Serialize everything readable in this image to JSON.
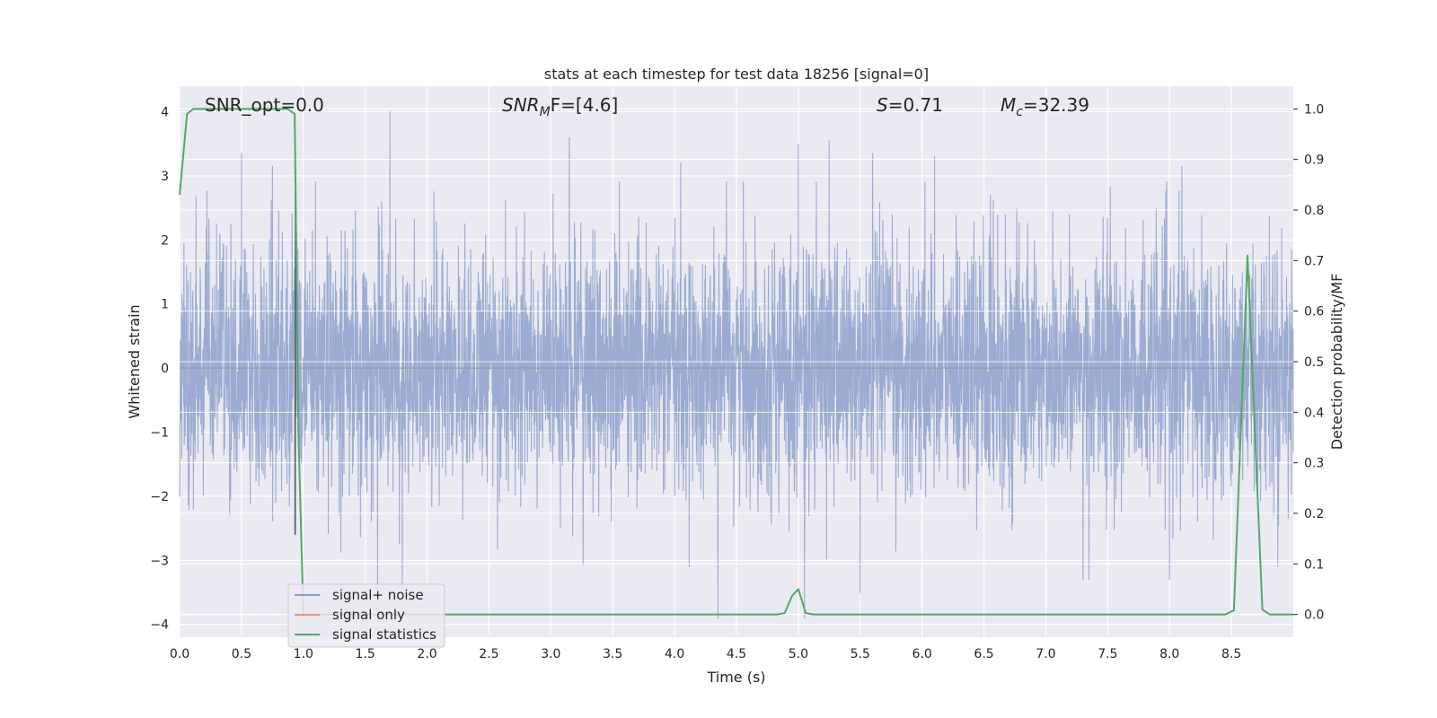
{
  "chart_data": {
    "type": "line",
    "title": "stats at each timestep for test data 18256 [signal=0]",
    "xlabel": "Time (s)",
    "ylabel_left": "Whitened strain",
    "ylabel_right": "Detection probability/MF",
    "xlim": [
      0.0,
      9.0
    ],
    "ylim_left": [
      -4.2,
      4.4
    ],
    "ylim_right": [
      -0.045,
      1.045
    ],
    "xticks": [
      "0.0",
      "0.5",
      "1.0",
      "1.5",
      "2.0",
      "2.5",
      "3.0",
      "3.5",
      "4.0",
      "4.5",
      "5.0",
      "5.5",
      "6.0",
      "6.5",
      "7.0",
      "7.5",
      "8.0",
      "8.5"
    ],
    "xtick_values": [
      0.0,
      0.5,
      1.0,
      1.5,
      2.0,
      2.5,
      3.0,
      3.5,
      4.0,
      4.5,
      5.0,
      5.5,
      6.0,
      6.5,
      7.0,
      7.5,
      8.0,
      8.5
    ],
    "yticks_left": [
      "4",
      "3",
      "2",
      "1",
      "0",
      "−1",
      "−2",
      "−3",
      "−4"
    ],
    "ytick_left_values": [
      4,
      3,
      2,
      1,
      0,
      -1,
      -2,
      -3,
      -4
    ],
    "yticks_right": [
      "1.0",
      "0.9",
      "0.8",
      "0.7",
      "0.6",
      "0.5",
      "0.4",
      "0.3",
      "0.2",
      "0.1",
      "0.0"
    ],
    "ytick_right_values": [
      1.0,
      0.9,
      0.8,
      0.7,
      0.6,
      0.5,
      0.4,
      0.3,
      0.2,
      0.1,
      0.0
    ],
    "grid": true,
    "legend_location": "lower-left",
    "annotations": {
      "snr_opt": "SNR_opt=0.0",
      "snr_mf_main": "SNR",
      "snr_mf_sub": "M",
      "snr_mf_rest": "F=[4.6]",
      "s_main": "S",
      "s_rest": "=0.71",
      "mc_main": "M",
      "mc_sub": "c",
      "mc_rest": "=32.39"
    },
    "series": [
      {
        "name": "signal+ noise",
        "color": "#8da0cb",
        "axis": "left",
        "sample_rate_hz": 512,
        "duration_s": 9.0,
        "typical_range": [
          -1.6,
          1.6
        ],
        "peaks": [
          {
            "x": 0.5,
            "y": 3.35
          },
          {
            "x": 0.75,
            "y": 3.15
          },
          {
            "x": 0.93,
            "y": 2.75
          },
          {
            "x": 1.7,
            "y": 4.0
          },
          {
            "x": 3.15,
            "y": 3.6
          },
          {
            "x": 4.05,
            "y": 3.2
          },
          {
            "x": 5.0,
            "y": 3.5
          },
          {
            "x": 5.25,
            "y": 3.55
          },
          {
            "x": 5.6,
            "y": 3.35
          },
          {
            "x": 6.1,
            "y": 3.3
          },
          {
            "x": 8.1,
            "y": 3.15
          },
          {
            "x": 0.93,
            "y": -2.6
          },
          {
            "x": 1.6,
            "y": -3.6
          },
          {
            "x": 1.8,
            "y": -3.45
          },
          {
            "x": 4.35,
            "y": -3.9
          },
          {
            "x": 5.05,
            "y": -3.9
          },
          {
            "x": 5.5,
            "y": -3.5
          },
          {
            "x": 7.3,
            "y": -3.3
          },
          {
            "x": 7.35,
            "y": -3.3
          },
          {
            "x": 8.0,
            "y": -3.3
          }
        ]
      },
      {
        "name": "signal only",
        "color": "#e49b7d",
        "axis": "left",
        "x": [
          0.95,
          1.15
        ],
        "y": [
          -3.85,
          -3.85
        ]
      },
      {
        "name": "signal statistics",
        "color": "#55a868",
        "axis": "right",
        "x": [
          0.0,
          0.06,
          0.11,
          0.23,
          0.34,
          0.46,
          0.57,
          0.69,
          0.8,
          0.87,
          0.93,
          0.96,
          1.0,
          1.08,
          1.2,
          2.0,
          3.0,
          4.0,
          4.5,
          4.83,
          4.89,
          4.95,
          5.0,
          5.06,
          5.12,
          5.5,
          6.0,
          7.0,
          8.0,
          8.45,
          8.52,
          8.63,
          8.75,
          8.81,
          8.87,
          9.0
        ],
        "y": [
          0.83,
          0.99,
          1.0,
          1.0,
          1.0,
          1.0,
          1.0,
          1.0,
          1.0,
          1.0,
          0.99,
          0.36,
          0.0,
          0.0,
          0.0,
          0.0,
          0.0,
          0.0,
          0.0,
          0.0,
          0.003,
          0.037,
          0.05,
          0.003,
          0.0,
          0.0,
          0.0,
          0.0,
          0.0,
          0.0,
          0.008,
          0.71,
          0.01,
          0.0,
          0.0,
          0.0
        ]
      }
    ]
  }
}
